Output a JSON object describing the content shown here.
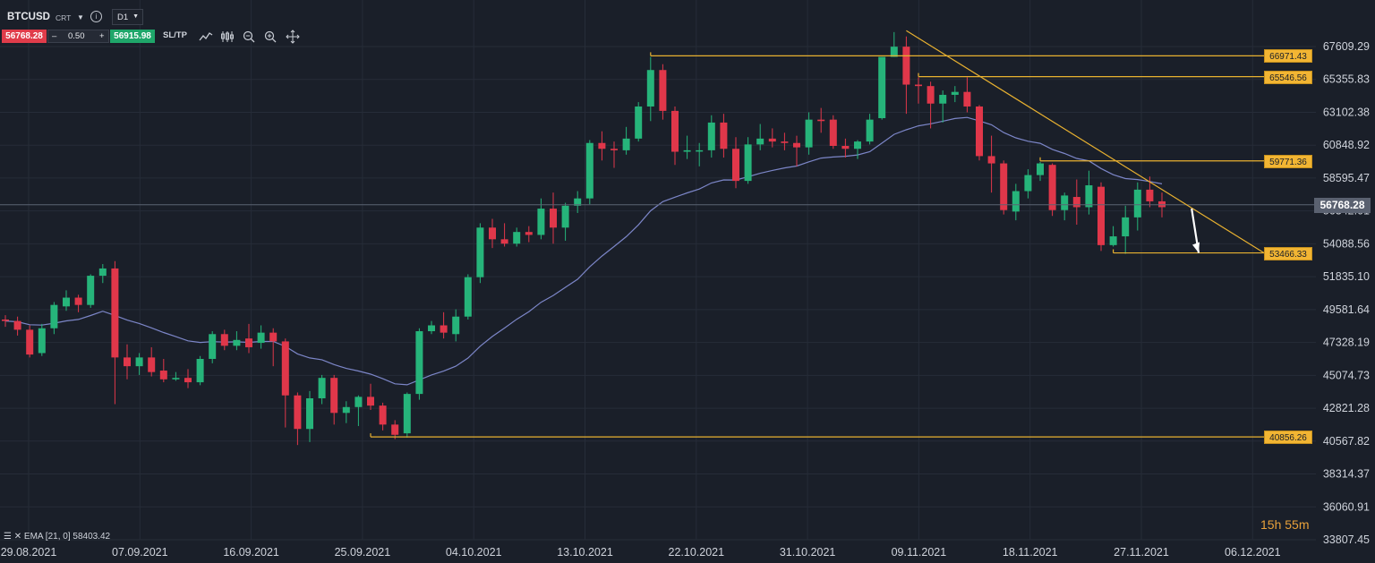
{
  "toolbar": {
    "symbol": "BTCUSD",
    "chart_type": "CRT",
    "timeframe": "D1",
    "sell_price": "56768.28",
    "quantity": "0.50",
    "minus": "–",
    "plus": "+",
    "buy_price": "56915.98",
    "sltp_label": "SL/TP",
    "tools": [
      "line-chart-icon",
      "indicators-icon",
      "zoom-out-icon",
      "zoom-in-icon",
      "crosshair-icon"
    ]
  },
  "indicator": {
    "label": "EMA [21, 0] 58403.42",
    "color": "#7c86c8"
  },
  "countdown": "15h 55m",
  "colors": {
    "background": "#1a1f29",
    "up": "#26b47a",
    "down": "#e0374a",
    "level": "#e8b130",
    "grid": "#262c38"
  },
  "chart_data": {
    "type": "candlestick",
    "symbol": "BTCUSD",
    "timeframe": "D1",
    "y_ticks": [
      "67609.29",
      "65355.83",
      "63102.38",
      "60848.92",
      "58595.47",
      "56342.01",
      "54088.56",
      "51835.10",
      "49581.64",
      "47328.19",
      "45074.73",
      "42821.28",
      "40567.82",
      "38314.37",
      "36060.91",
      "33807.45"
    ],
    "x_ticks": [
      "29.08.2021",
      "07.09.2021",
      "16.09.2021",
      "25.09.2021",
      "04.10.2021",
      "13.10.2021",
      "22.10.2021",
      "31.10.2021",
      "09.11.2021",
      "18.11.2021",
      "27.11.2021",
      "06.12.2021"
    ],
    "current_price": "56768.28",
    "levels": [
      "66971.43",
      "65546.56",
      "59771.36",
      "53466.33",
      "40856.26"
    ],
    "candles": [
      [
        48900,
        48800,
        49200,
        48400
      ],
      [
        48800,
        48200,
        49100,
        47800
      ],
      [
        48200,
        46500,
        48500,
        46300
      ],
      [
        46600,
        48300,
        48600,
        46400
      ],
      [
        48300,
        49900,
        50100,
        47900
      ],
      [
        49800,
        50400,
        50900,
        49500
      ],
      [
        50400,
        49900,
        50600,
        49400
      ],
      [
        49900,
        51900,
        52000,
        49700
      ],
      [
        51900,
        52400,
        52700,
        51400
      ],
      [
        52400,
        46300,
        52900,
        43100
      ],
      [
        46300,
        45700,
        47200,
        44800
      ],
      [
        45700,
        46300,
        46600,
        45100
      ],
      [
        46300,
        45300,
        47000,
        45000
      ],
      [
        45400,
        44800,
        46200,
        44600
      ],
      [
        44800,
        44900,
        45300,
        44700
      ],
      [
        44900,
        44600,
        45500,
        44200
      ],
      [
        44600,
        46200,
        46400,
        44400
      ],
      [
        46200,
        47900,
        48100,
        45900
      ],
      [
        47900,
        47100,
        48200,
        46800
      ],
      [
        47100,
        47500,
        48100,
        46800
      ],
      [
        47600,
        47000,
        48600,
        46600
      ],
      [
        47300,
        48000,
        48500,
        46900
      ],
      [
        48000,
        47400,
        48300,
        45700
      ],
      [
        47400,
        43700,
        47600,
        41500
      ],
      [
        43700,
        41400,
        43900,
        40300
      ],
      [
        41400,
        43500,
        44000,
        40500
      ],
      [
        43500,
        44900,
        45100,
        43100
      ],
      [
        44900,
        42500,
        45100,
        41700
      ],
      [
        42500,
        42900,
        43300,
        41800
      ],
      [
        42900,
        43600,
        43700,
        41600
      ],
      [
        43600,
        43000,
        44500,
        42700
      ],
      [
        43000,
        41700,
        43200,
        41300
      ],
      [
        41700,
        41000,
        42000,
        40700
      ],
      [
        41100,
        43800,
        43900,
        40800
      ],
      [
        43800,
        48100,
        48300,
        43400
      ],
      [
        48100,
        48500,
        48800,
        47900
      ],
      [
        48500,
        48000,
        49400,
        47600
      ],
      [
        47900,
        49100,
        49600,
        47400
      ],
      [
        49100,
        51800,
        52000,
        48900
      ],
      [
        51800,
        55200,
        55500,
        51400
      ],
      [
        55200,
        54400,
        55800,
        53800
      ],
      [
        54400,
        54100,
        55500,
        53900
      ],
      [
        54100,
        54900,
        55200,
        53900
      ],
      [
        54900,
        54700,
        55300,
        54200
      ],
      [
        54700,
        56500,
        57200,
        54400
      ],
      [
        56500,
        55200,
        57600,
        54100
      ],
      [
        55200,
        56700,
        56900,
        54300
      ],
      [
        56700,
        57200,
        57700,
        56200
      ],
      [
        57200,
        61000,
        61200,
        56800
      ],
      [
        61000,
        60600,
        61800,
        59800
      ],
      [
        60600,
        60500,
        61100,
        59300
      ],
      [
        60500,
        61300,
        62100,
        60200
      ],
      [
        61300,
        63500,
        63800,
        61100
      ],
      [
        63500,
        66000,
        66900,
        62500
      ],
      [
        66000,
        63200,
        66400,
        62600
      ],
      [
        63200,
        60400,
        63500,
        59500
      ],
      [
        60400,
        60500,
        61500,
        59900
      ],
      [
        60500,
        60500,
        61000,
        59400
      ],
      [
        60500,
        62400,
        62900,
        60000
      ],
      [
        62400,
        60600,
        63000,
        60000
      ],
      [
        60600,
        58400,
        61400,
        57900
      ],
      [
        58400,
        60900,
        61400,
        58200
      ],
      [
        60900,
        61300,
        62300,
        60500
      ],
      [
        61300,
        61100,
        62000,
        60700
      ],
      [
        61100,
        61000,
        61700,
        60500
      ],
      [
        61000,
        60700,
        61500,
        59400
      ],
      [
        60700,
        62600,
        63100,
        60200
      ],
      [
        62600,
        62500,
        63400,
        61700
      ],
      [
        62600,
        60800,
        62900,
        60600
      ],
      [
        60800,
        60600,
        61300,
        60000
      ],
      [
        60600,
        61100,
        61200,
        59900
      ],
      [
        61100,
        62600,
        63000,
        60900
      ],
      [
        62700,
        66900,
        66900,
        62600
      ],
      [
        66900,
        67600,
        68600,
        66900
      ],
      [
        67600,
        65000,
        68300,
        63000
      ],
      [
        65000,
        64900,
        65500,
        63700
      ],
      [
        64900,
        63700,
        65200,
        62000
      ],
      [
        63700,
        64300,
        64600,
        62400
      ],
      [
        64300,
        64500,
        64900,
        63800
      ],
      [
        64500,
        63500,
        65500,
        63100
      ],
      [
        63500,
        60100,
        63600,
        59800
      ],
      [
        60100,
        59600,
        61500,
        57600
      ],
      [
        59600,
        56400,
        59800,
        56100
      ],
      [
        56300,
        57700,
        58200,
        55700
      ],
      [
        57700,
        58800,
        59200,
        57200
      ],
      [
        58800,
        59600,
        59700,
        58400
      ],
      [
        59500,
        56400,
        59600,
        56000
      ],
      [
        56400,
        57400,
        57600,
        55700
      ],
      [
        57300,
        56600,
        58500,
        55400
      ],
      [
        56600,
        58100,
        59100,
        56100
      ],
      [
        58000,
        54000,
        58300,
        53600
      ],
      [
        54000,
        54600,
        55300,
        53900
      ],
      [
        54600,
        55900,
        56700,
        53400
      ],
      [
        55900,
        57800,
        58300,
        55000
      ],
      [
        57800,
        57000,
        58700,
        56600
      ],
      [
        57000,
        56600,
        57600,
        55900
      ]
    ],
    "ema_21_end": "58403.42"
  }
}
